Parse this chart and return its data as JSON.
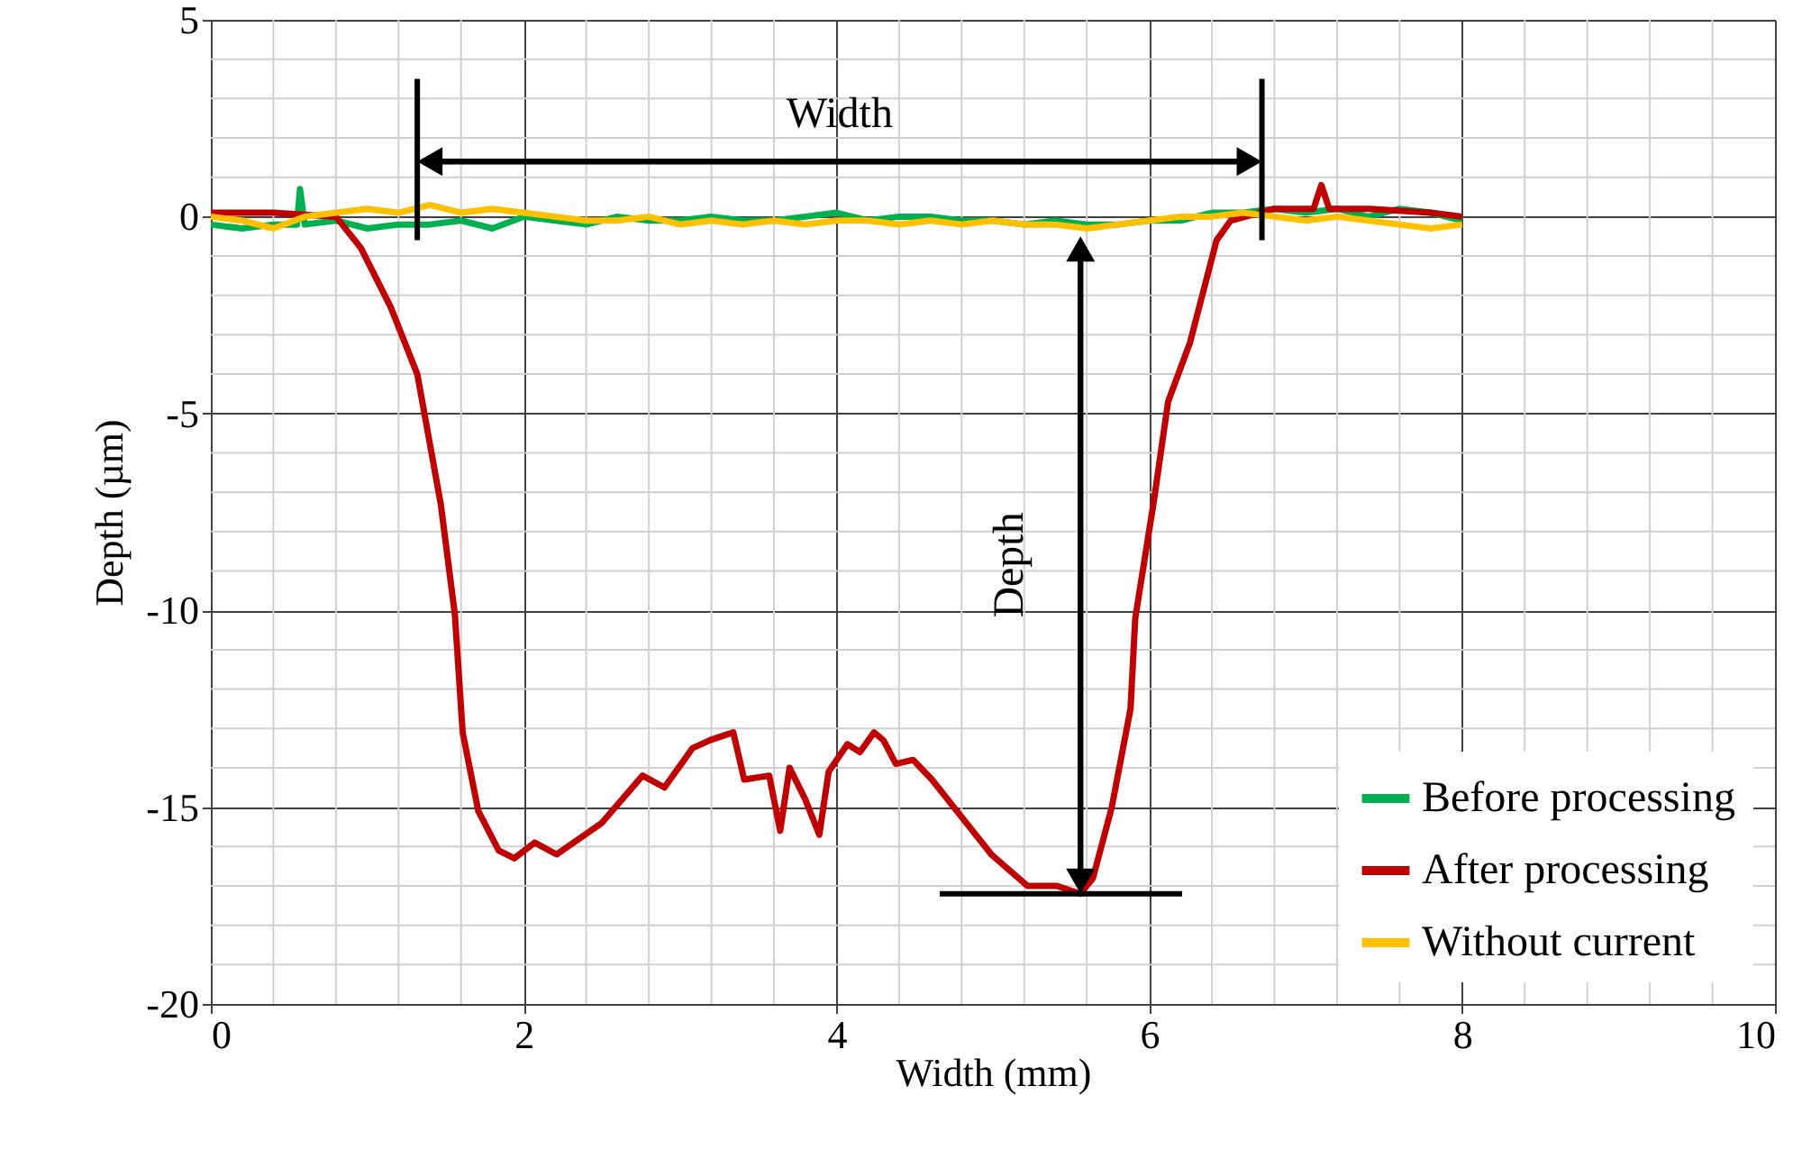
{
  "chart_data": {
    "type": "line",
    "xlabel": "Width (mm)",
    "ylabel": "Depth  (µm)",
    "xlim": [
      0,
      10
    ],
    "xticks": [
      0,
      2,
      4,
      6,
      8,
      10
    ],
    "ylim": [
      -20,
      5
    ],
    "yticks": [
      -20,
      -15,
      -10,
      -5,
      0,
      5
    ],
    "grid": true,
    "legend": "bottom right",
    "line_style": "solid",
    "marker": "none",
    "series": [
      {
        "name": "Before processing",
        "color": "#00b050",
        "x": [
          0,
          0.2,
          0.4,
          0.55,
          0.57,
          0.6,
          0.8,
          1.0,
          1.2,
          1.4,
          1.6,
          1.8,
          2.0,
          2.2,
          2.4,
          2.6,
          2.8,
          3.0,
          3.2,
          3.4,
          3.6,
          3.8,
          4.0,
          4.2,
          4.4,
          4.6,
          4.8,
          5.0,
          5.2,
          5.4,
          5.6,
          5.8,
          6.0,
          6.2,
          6.4,
          6.6,
          6.8,
          7.0,
          7.2,
          7.4,
          7.6,
          7.8,
          8.0
        ],
        "values": [
          -0.2,
          -0.3,
          -0.2,
          -0.2,
          0.7,
          -0.2,
          -0.1,
          -0.3,
          -0.2,
          -0.2,
          -0.1,
          -0.3,
          0.0,
          -0.1,
          -0.2,
          0.0,
          -0.1,
          -0.1,
          0.0,
          -0.1,
          -0.1,
          0.0,
          0.1,
          -0.1,
          0.0,
          0.0,
          -0.1,
          -0.1,
          -0.2,
          -0.1,
          -0.2,
          -0.2,
          -0.1,
          -0.1,
          0.1,
          0.1,
          0.2,
          0.1,
          0.2,
          0.0,
          0.2,
          0.1,
          -0.1
        ]
      },
      {
        "name": "After processing",
        "color": "#c00000",
        "x": [
          0,
          0.4,
          0.8,
          0.96,
          1.15,
          1.32,
          1.47,
          1.56,
          1.61,
          1.71,
          1.84,
          1.94,
          2.07,
          2.21,
          2.5,
          2.76,
          2.9,
          3.08,
          3.19,
          3.34,
          3.41,
          3.57,
          3.64,
          3.7,
          3.8,
          3.89,
          3.95,
          4.07,
          4.15,
          4.24,
          4.3,
          4.38,
          4.49,
          4.61,
          4.79,
          4.99,
          5.22,
          5.41,
          5.56,
          5.64,
          5.76,
          5.88,
          5.91,
          6.03,
          6.12,
          6.26,
          6.43,
          6.52,
          6.8,
          7.05,
          7.1,
          7.15,
          7.4,
          7.8,
          8.0
        ],
        "values": [
          0.1,
          0.1,
          0.0,
          -0.8,
          -2.3,
          -4.0,
          -7.3,
          -10.1,
          -13.1,
          -15.1,
          -16.1,
          -16.3,
          -15.9,
          -16.2,
          -15.4,
          -14.2,
          -14.5,
          -13.5,
          -13.3,
          -13.1,
          -14.3,
          -14.2,
          -15.6,
          -14.0,
          -14.8,
          -15.7,
          -14.1,
          -13.4,
          -13.6,
          -13.1,
          -13.3,
          -13.9,
          -13.8,
          -14.3,
          -15.2,
          -16.2,
          -17.0,
          -17.0,
          -17.2,
          -16.8,
          -15.0,
          -12.5,
          -10.2,
          -7.2,
          -4.7,
          -3.2,
          -0.6,
          -0.1,
          0.2,
          0.2,
          0.8,
          0.2,
          0.2,
          0.1,
          0.0
        ]
      },
      {
        "name": "Without current",
        "color": "#ffc000",
        "x": [
          0,
          0.2,
          0.4,
          0.6,
          0.8,
          1.0,
          1.2,
          1.4,
          1.6,
          1.8,
          2.0,
          2.2,
          2.4,
          2.6,
          2.8,
          3.0,
          3.2,
          3.4,
          3.6,
          3.8,
          4.0,
          4.2,
          4.4,
          4.6,
          4.8,
          5.0,
          5.2,
          5.4,
          5.6,
          5.8,
          6.0,
          6.2,
          6.4,
          6.6,
          6.8,
          7.0,
          7.2,
          7.4,
          7.6,
          7.8,
          8.0
        ],
        "values": [
          0.0,
          -0.1,
          -0.3,
          0.0,
          0.1,
          0.2,
          0.1,
          0.3,
          0.1,
          0.2,
          0.1,
          0.0,
          -0.1,
          -0.1,
          0.0,
          -0.2,
          -0.1,
          -0.2,
          -0.1,
          -0.2,
          -0.1,
          -0.1,
          -0.2,
          -0.1,
          -0.2,
          -0.1,
          -0.2,
          -0.2,
          -0.3,
          -0.2,
          -0.1,
          0.0,
          0.0,
          0.1,
          0.0,
          -0.1,
          0.0,
          -0.1,
          -0.2,
          -0.3,
          -0.2
        ]
      }
    ],
    "annotations": [
      "Width",
      "Depth"
    ]
  }
}
